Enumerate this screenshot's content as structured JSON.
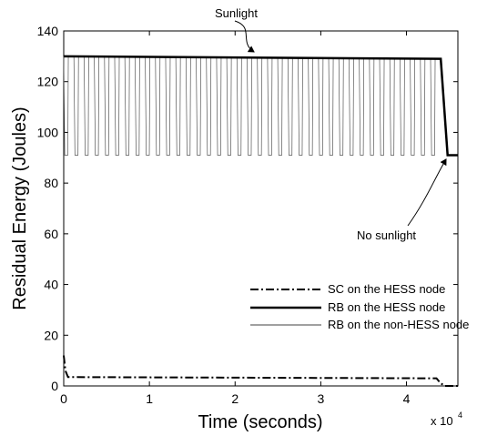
{
  "chart_data": {
    "type": "line",
    "title": "",
    "xlabel": "Time (seconds)",
    "ylabel": "Residual Energy (Joules)",
    "x_multiplier": "x 10",
    "x_multiplier_exp": "4",
    "xlim": [
      0,
      4.6
    ],
    "ylim": [
      0,
      140
    ],
    "xticks": [
      0,
      1,
      2,
      3,
      4
    ],
    "yticks": [
      0,
      20,
      40,
      60,
      80,
      100,
      120,
      140
    ],
    "grid": false,
    "legend_position": "bottom-right",
    "series": [
      {
        "name": "SC on the HESS node",
        "style": "dash-dot",
        "x": [
          0,
          0.02,
          0.05,
          4.35,
          4.4,
          4.45,
          4.6
        ],
        "y": [
          12,
          6,
          3.5,
          3,
          1,
          0,
          0
        ]
      },
      {
        "name": "RB on the HESS node",
        "style": "solid-thick",
        "x": [
          0,
          4.4,
          4.48,
          4.6
        ],
        "y": [
          130,
          129,
          91,
          91
        ]
      },
      {
        "name": "RB on the non-HESS node",
        "style": "solid-thin",
        "oscillation": {
          "x_start": 0,
          "x_end": 4.4,
          "cycles": 37,
          "y_low": 91,
          "y_high_start": 130,
          "y_high_end": 129
        },
        "tail": {
          "x": [
            4.4,
            4.48,
            4.6
          ],
          "y": [
            129,
            91,
            91
          ]
        }
      }
    ],
    "annotations": [
      {
        "text": "Sunlight",
        "target": {
          "x": 2.1,
          "y": 129
        }
      },
      {
        "text": "No sunlight",
        "target": {
          "x": 4.58,
          "y": 91
        }
      }
    ]
  }
}
